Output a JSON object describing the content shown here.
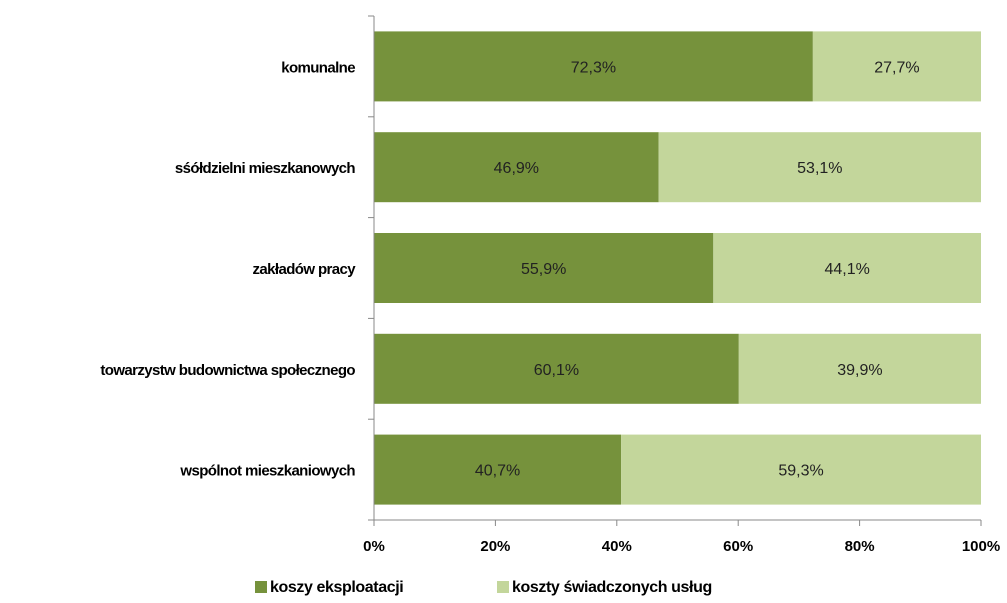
{
  "chart_data": {
    "type": "bar",
    "orientation": "horizontal",
    "stacked": "percent",
    "categories": [
      "komunalne",
      "sśółdzielni mieszkanowych",
      "zakładów pracy",
      "towarzystw budownictwa społecznego",
      "wspólnot mieszkaniowych"
    ],
    "series": [
      {
        "name": "koszy eksploatacji",
        "color": "#76923c",
        "values": [
          72.3,
          46.9,
          55.9,
          60.1,
          40.7
        ],
        "labels": [
          "72,3%",
          "46,9%",
          "55,9%",
          "60,1%",
          "40,7%"
        ]
      },
      {
        "name": "koszty świadczonych usług",
        "color": "#c3d69b",
        "values": [
          27.7,
          53.1,
          44.1,
          39.9,
          59.3
        ],
        "labels": [
          "27,7%",
          "53,1%",
          "44,1%",
          "39,9%",
          "59,3%"
        ]
      }
    ],
    "xlim": [
      0,
      100
    ],
    "x_ticks": [
      "0%",
      "20%",
      "40%",
      "60%",
      "80%",
      "100%"
    ],
    "title": "",
    "xlabel": "",
    "ylabel": "",
    "grid": false,
    "legend_position": "bottom"
  }
}
